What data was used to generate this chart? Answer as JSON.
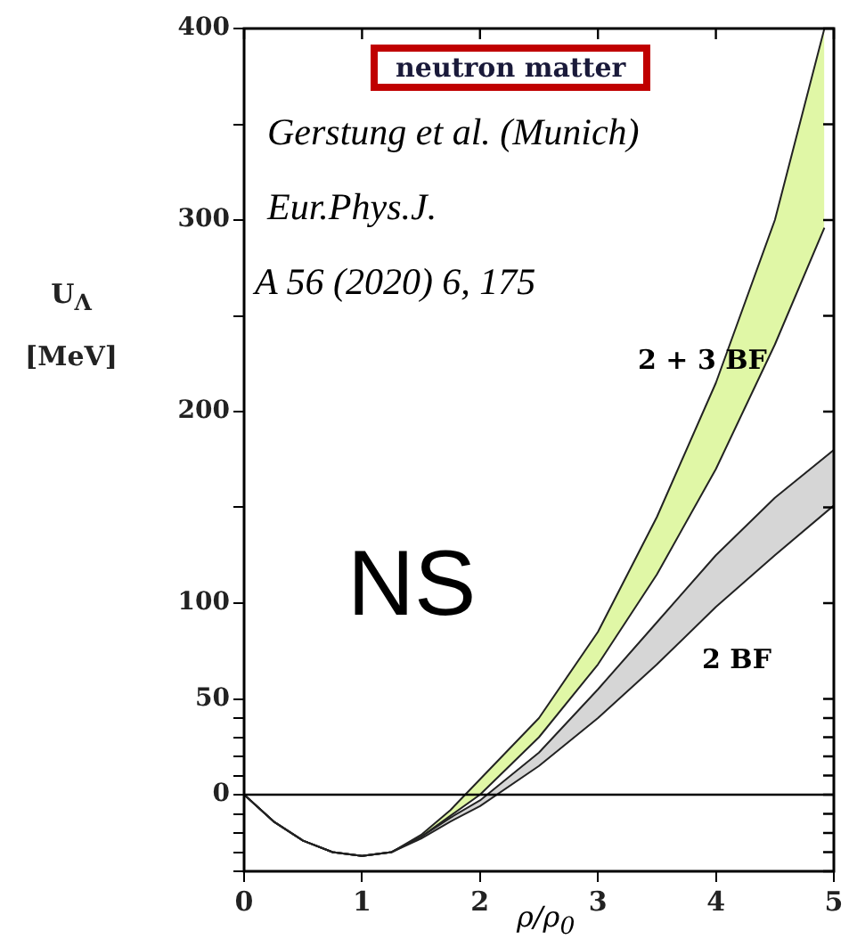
{
  "chart_data": {
    "type": "line",
    "title": "neutron matter",
    "xlabel": "ρ/ρ$_{0}$",
    "ylabel": "U$_{Λ}$ [MeV]",
    "xlim": [
      0,
      5
    ],
    "xticks": [
      0,
      1,
      2,
      3,
      4,
      5
    ],
    "ylim": [
      -40,
      400
    ],
    "yticks": [
      {
        "value": -40,
        "label": null
      },
      {
        "value": -30,
        "label": null
      },
      {
        "value": -20,
        "label": null
      },
      {
        "value": -10,
        "label": null
      },
      0,
      {
        "value": 10,
        "label": null
      },
      {
        "value": 20,
        "label": null
      },
      {
        "value": 30,
        "label": null
      },
      {
        "value": 40,
        "label": null
      },
      50,
      100,
      {
        "value": 150,
        "label": null
      },
      200,
      {
        "value": 250,
        "label": null
      },
      300,
      {
        "value": 350,
        "label": null
      },
      400
    ],
    "series": [
      {
        "color": "#e0f7a6",
        "x": [
          0,
          0.25,
          0.5,
          0.75,
          1,
          1.25,
          1.5,
          1.75,
          2,
          2.5,
          3,
          3.5,
          4,
          4.5,
          4.92
        ],
        "values": [
          null,
          null,
          null,
          null,
          null,
          null,
          null,
          null,
          null,
          null,
          null,
          null,
          null,
          null,
          null
        ],
        "lower": [
          0,
          -14,
          -24,
          -30,
          -32,
          -30,
          -22,
          -11,
          0,
          30,
          68,
          115,
          170,
          235,
          296
        ],
        "upper": [
          0,
          -14,
          -24,
          -30,
          -32,
          -30,
          -21,
          -8,
          8,
          40,
          85,
          145,
          215,
          300,
          400
        ]
      },
      {
        "color": "#d6d6d6",
        "x": [
          0,
          0.25,
          0.5,
          0.75,
          1,
          1.25,
          1.5,
          1.75,
          2,
          2.5,
          3,
          3.5,
          4,
          4.5,
          5
        ],
        "values": [
          null,
          null,
          null,
          null,
          null,
          null,
          null,
          null,
          null,
          null,
          null,
          null,
          null,
          null,
          null
        ],
        "lower": [
          0,
          -14,
          -24,
          -30,
          -32,
          -30,
          -23,
          -14,
          -6,
          15,
          40,
          68,
          98,
          125,
          151
        ],
        "upper": [
          0,
          -14,
          -24,
          -30,
          -32,
          -30,
          -22,
          -12,
          -3,
          22,
          55,
          90,
          125,
          155,
          180
        ]
      },
      {
        "color": "#222222",
        "x": [
          0,
          0.25,
          0.5,
          0.75,
          1,
          1.25,
          1.5,
          1.75,
          2,
          2.5,
          3,
          3.5,
          4,
          4.5,
          4.92
        ],
        "values": [
          0,
          -14,
          -24,
          -30,
          -32,
          -30,
          -22,
          -11,
          0,
          30,
          68,
          115,
          170,
          235,
          296
        ]
      },
      {
        "color": "#222222",
        "x": [
          0,
          0.25,
          0.5,
          0.75,
          1,
          1.25,
          1.5,
          1.75,
          2,
          2.5,
          3,
          3.5,
          4,
          4.5,
          4.92
        ],
        "values": [
          0,
          -14,
          -24,
          -30,
          -32,
          -30,
          -21,
          -8,
          8,
          40,
          85,
          145,
          215,
          300,
          400
        ]
      },
      {
        "color": "#222222",
        "x": [
          0,
          0.25,
          0.5,
          0.75,
          1,
          1.25,
          1.5,
          1.75,
          2,
          2.5,
          3,
          3.5,
          4,
          4.5,
          5
        ],
        "values": [
          0,
          -14,
          -24,
          -30,
          -32,
          -30,
          -23,
          -14,
          -6,
          15,
          40,
          68,
          98,
          125,
          151
        ]
      },
      {
        "color": "#222222",
        "x": [
          0,
          0.25,
          0.5,
          0.75,
          1,
          1.25,
          1.5,
          1.75,
          2,
          2.5,
          3,
          3.5,
          4,
          4.5,
          5
        ],
        "values": [
          0,
          -14,
          -24,
          -30,
          -32,
          -30,
          -22,
          -12,
          -3,
          22,
          55,
          90,
          125,
          155,
          180
        ]
      }
    ],
    "ref_lines": [
      {
        "axis": "y",
        "value": 0,
        "color": "#000000"
      }
    ],
    "annotations": [
      "Gerstung et al. (Munich)",
      "Eur.Phys.J.",
      "A 56 (2020) 6, 175",
      "2 + 3 BF",
      "2 BF",
      "NS"
    ],
    "grid": false,
    "legend": false,
    "marker": "none",
    "line_style": "solid"
  }
}
